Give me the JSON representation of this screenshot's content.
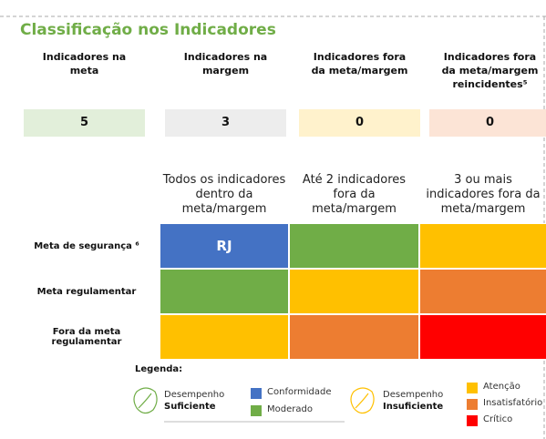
{
  "title": "Classificação nos Indicadores",
  "summary": [
    {
      "label": "Indicadores na meta",
      "value": 5,
      "color": "#e2efda"
    },
    {
      "label": "Indicadores na margem",
      "value": 3,
      "color": "#ededed"
    },
    {
      "label": "Indicadores fora da meta/margem",
      "value": 0,
      "color": "#fff2cc"
    },
    {
      "label": "Indicadores fora da meta/margem reincidentes⁵",
      "value": 0,
      "color": "#fce4d6"
    }
  ],
  "matrix": {
    "columns": [
      "Todos os indicadores dentro da meta/margem",
      "Até 2 indicadores fora da meta/margem",
      "3 ou mais indicadores fora da meta/margem"
    ],
    "rows": [
      {
        "label": "Meta de segurança ⁶",
        "cells": [
          {
            "color": "#4472c4",
            "text": "RJ"
          },
          {
            "color": "#70ad47"
          },
          {
            "color": "#ffc000"
          }
        ]
      },
      {
        "label": "Meta regulamentar",
        "cells": [
          {
            "color": "#70ad47"
          },
          {
            "color": "#ffc000"
          },
          {
            "color": "#ed7d31"
          }
        ]
      },
      {
        "label": "Fora da meta regulamentar",
        "cells": [
          {
            "color": "#ffc000"
          },
          {
            "color": "#ed7d31"
          },
          {
            "color": "#ff0000"
          }
        ]
      }
    ]
  },
  "legend": {
    "title": "Legenda:",
    "groups": [
      {
        "line1": "Desempenho",
        "line2": "Suficiente",
        "items": [
          {
            "name": "Conformidade",
            "color": "#4472c4"
          },
          {
            "name": "Moderado",
            "color": "#70ad47"
          }
        ]
      },
      {
        "line1": "Desempenho",
        "line2": "Insuficiente",
        "items": [
          {
            "name": "Atenção",
            "color": "#ffc000"
          },
          {
            "name": "Insatisfatório",
            "color": "#ed7d31"
          },
          {
            "name": "Crítico",
            "color": "#ff0000"
          }
        ]
      }
    ]
  }
}
